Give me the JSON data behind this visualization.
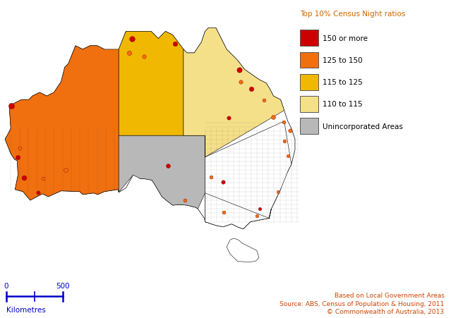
{
  "legend_title": "Top 10% Census Night ratios",
  "legend_items": [
    {
      "label": "150 or more",
      "color": "#cc0000"
    },
    {
      "label": "125 to 150",
      "color": "#f07010"
    },
    {
      "label": "115 to 125",
      "color": "#f0b800"
    },
    {
      "label": "110 to 115",
      "color": "#f5e08a"
    },
    {
      "label": "Unincorporated Areas",
      "color": "#b8b8b8"
    }
  ],
  "legend_title_color": "#cc6600",
  "source_text": "Based on Local Government Areas\nSource: ABS, Census of Population & Housing, 2011\n© Commonwealth of Australia, 2013",
  "source_color": "#cc4400",
  "scalebar_label": "Kilometres",
  "scalebar_color": "#0000cc",
  "background_color": "#ffffff"
}
